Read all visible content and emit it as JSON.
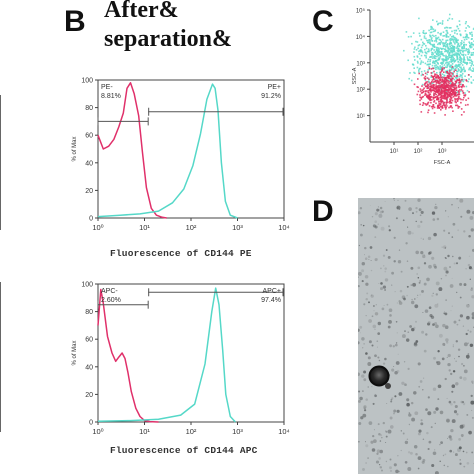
{
  "panels": {
    "b_letter": "B",
    "c_letter": "C",
    "d_letter": "D"
  },
  "heading": {
    "line1": "After&",
    "line2": "separation&"
  },
  "colors": {
    "negative_curve": "#e0306a",
    "positive_curve": "#55d8c8",
    "gate_line": "#555555",
    "density_red": "#e23060",
    "density_cyan": "#63dccc",
    "micrograph_bg": "#bcc2c4"
  },
  "chart_data": [
    {
      "type": "line",
      "panel": "B-top",
      "xlabel": "Fluorescence of CD144 PE",
      "ylabel": "% of Max",
      "xscale": "log",
      "xlim": [
        1,
        10000
      ],
      "ylim": [
        0,
        100
      ],
      "x_ticks": [
        "10⁰",
        "10¹",
        "10²",
        "10³",
        "10⁴"
      ],
      "y_ticks": [
        "0",
        "20",
        "40",
        "60",
        "80",
        "100"
      ],
      "gates": [
        {
          "name": "PE-",
          "percent": "8.81%",
          "x_range": [
            1,
            12
          ],
          "y": 70
        },
        {
          "name": "PE+",
          "percent": "91.2%",
          "x_range": [
            12,
            10000
          ],
          "y": 77
        }
      ],
      "series": [
        {
          "color": "#e0306a",
          "x": [
            1.0,
            1.3,
            1.7,
            2.2,
            2.8,
            3.5,
            4.2,
            5.0,
            6.0,
            7.5,
            9.0,
            11,
            14,
            18,
            24,
            30
          ],
          "y": [
            60,
            50,
            52,
            57,
            66,
            76,
            94,
            98,
            90,
            74,
            48,
            22,
            7,
            2,
            0.5,
            0
          ]
        },
        {
          "color": "#55d8c8",
          "x": [
            1,
            3,
            8,
            20,
            40,
            70,
            110,
            160,
            220,
            290,
            330,
            380,
            450,
            550,
            700,
            1000
          ],
          "y": [
            1,
            2,
            3,
            5,
            11,
            21,
            38,
            61,
            86,
            97,
            94,
            78,
            40,
            12,
            2,
            0
          ]
        }
      ]
    },
    {
      "type": "line",
      "panel": "B-bottom",
      "xlabel": "Fluorescence of CD144 APC",
      "ylabel": "% of Max",
      "xscale": "log",
      "xlim": [
        1,
        10000
      ],
      "ylim": [
        0,
        100
      ],
      "x_ticks": [
        "10⁰",
        "10¹",
        "10²",
        "10³",
        "10⁴"
      ],
      "y_ticks": [
        "0",
        "20",
        "40",
        "60",
        "80",
        "100"
      ],
      "gates": [
        {
          "name": "APC-",
          "percent": "2.60%",
          "x_range": [
            1,
            12
          ],
          "y": 85
        },
        {
          "name": "APC+",
          "percent": "97.4%",
          "x_range": [
            12,
            10000
          ],
          "y": 94
        }
      ],
      "series": [
        {
          "color": "#e0306a",
          "x": [
            1.0,
            1.15,
            1.3,
            1.6,
            2.0,
            2.4,
            2.8,
            3.3,
            3.8,
            4.4,
            5.2,
            6.5,
            8.0,
            10,
            13,
            20
          ],
          "y": [
            70,
            96,
            86,
            62,
            50,
            44,
            47,
            50,
            46,
            36,
            22,
            10,
            4,
            1,
            0.3,
            0
          ]
        },
        {
          "color": "#55d8c8",
          "x": [
            1,
            5,
            20,
            60,
            120,
            200,
            280,
            340,
            400,
            480,
            560,
            700,
            900
          ],
          "y": [
            0.5,
            1,
            2,
            5,
            13,
            42,
            80,
            97,
            85,
            52,
            20,
            4,
            0
          ]
        }
      ]
    },
    {
      "type": "scatter",
      "panel": "C",
      "xlabel": "FSC-A",
      "ylabel": "SSC-A",
      "xscale": "log",
      "yscale": "log",
      "xlim": [
        1,
        100000
      ],
      "ylim": [
        1,
        100000
      ],
      "x_ticks": [
        "10¹",
        "10²",
        "10³"
      ],
      "y_ticks": [
        "10¹",
        "10²",
        "10³",
        "10⁴",
        "10⁵"
      ],
      "populations": [
        {
          "color": "#63dccc",
          "x_center": 2000,
          "y_center": 2000
        },
        {
          "color": "#e23060",
          "x_center": 1000,
          "y_center": 100
        }
      ]
    }
  ]
}
